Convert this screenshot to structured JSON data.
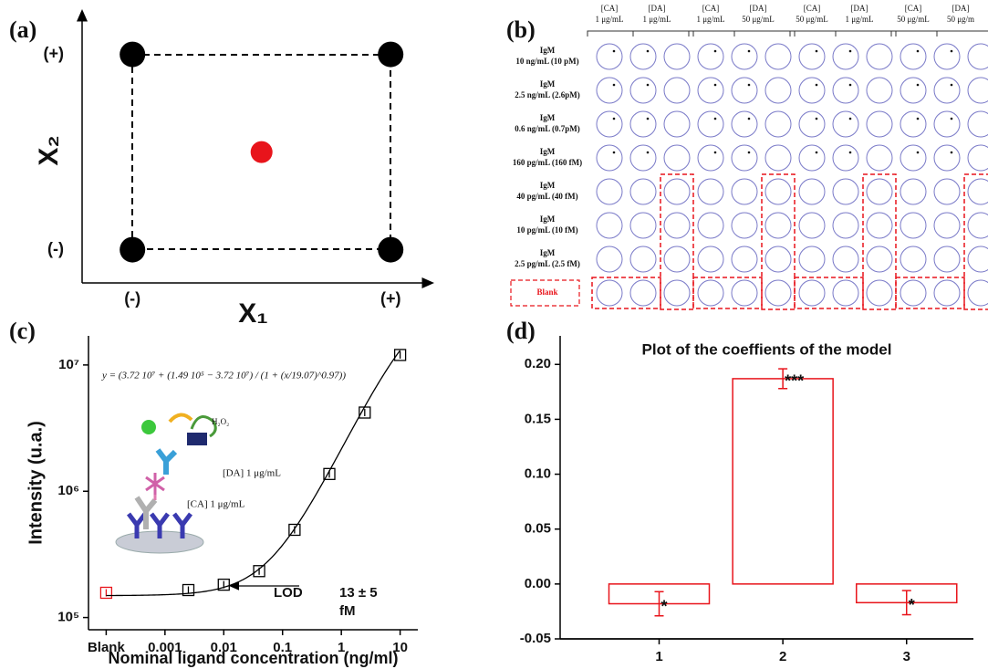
{
  "chart_data": [
    {
      "type": "scatter",
      "label": "(a)",
      "xlabel": "X₁",
      "ylabel": "X₂",
      "marker": "circle",
      "xlim": [
        -1.39,
        1.26
      ],
      "ylim": [
        -1.34,
        1.37
      ],
      "xticks": [
        {
          "value": -1,
          "label": "(-)"
        },
        {
          "value": 1,
          "label": "(+)"
        }
      ],
      "yticks": [
        {
          "value": -1,
          "label": "(-)"
        },
        {
          "value": 1,
          "label": "(+)"
        }
      ],
      "series": [
        {
          "color": "#000000",
          "x": [
            -1,
            1,
            -1,
            1
          ],
          "values": [
            1,
            1,
            -1,
            -1
          ]
        },
        {
          "color": "#e8141b",
          "x": [
            0
          ],
          "values": [
            0
          ]
        }
      ]
    },
    {
      "type": "scatter",
      "label": "(c)",
      "xlabel": "Nominal ligand concentration (ng/ml)",
      "ylabel": "Intensity (u.a.)",
      "marker": "square",
      "log_x": true,
      "log_y": true,
      "xlim": [
        5e-05,
        20
      ],
      "ylim": [
        80000,
        17000000
      ],
      "xticks": [
        {
          "value": 0.0001,
          "label": "Blank"
        },
        0.001,
        0.01,
        0.1,
        1,
        10
      ],
      "yticks": [
        {
          "value": 100000,
          "label": "10⁵"
        },
        {
          "value": 1000000,
          "label": "10⁶"
        },
        {
          "value": 10000000,
          "label": "10⁷"
        }
      ],
      "series": [
        {
          "color": "#e8141b",
          "x": [
            0.0001
          ],
          "values": [
            157000
          ]
        },
        {
          "color": "#000000",
          "x": [
            0.0025,
            0.01,
            0.04,
            0.16,
            0.625,
            2.5,
            10
          ],
          "values": [
            165000,
            182000,
            233000,
            495000,
            1370000,
            4200000,
            12000000
          ]
        }
      ],
      "fit": {
        "A1": 37200000,
        "A2": 149000,
        "x0": 19.07,
        "p": 0.97
      },
      "formula": "y = (3.72 10⁷ + (1.49 10⁵ − 3.72 10⁷) / (1 + (x/19.07)^0.97))",
      "lod_label": "LOD",
      "lod_value": "13 ± 5",
      "lod_unit": "fM",
      "illustration_labels": [
        "H₂O₂",
        "[DA] 1 μg/mL",
        "[CA] 1 μg/mL"
      ]
    },
    {
      "type": "bar",
      "label": "(d)",
      "title": "Plot of the coeffients of the model",
      "color": "#e8141b",
      "x": [
        1,
        2,
        3
      ],
      "values": [
        -0.018,
        0.187,
        -0.017
      ],
      "errors": [
        0.011,
        0.009,
        0.011
      ],
      "annotations": [
        "*",
        "***",
        "*"
      ],
      "xlim": [
        0.2,
        3.54
      ],
      "ylim": [
        -0.05,
        0.226
      ],
      "xticks": [
        1,
        2,
        3
      ],
      "yticks": [
        -0.05,
        {
          "value": 0,
          "label": "0.00"
        },
        0.05,
        {
          "value": 0.1,
          "label": "0.10"
        },
        0.15,
        {
          "value": 0.2,
          "label": "0.20"
        }
      ]
    }
  ],
  "panel_b": {
    "label": "(b)",
    "columns": [
      {
        "top": "[CA]",
        "bottom": "1 μg/mL"
      },
      {
        "top": "[DA]",
        "bottom": "1 μg/mL"
      },
      {
        "top": "[CA]",
        "bottom": "1 μg/mL"
      },
      {
        "top": "[DA]",
        "bottom": "50 μg/mL"
      },
      {
        "top": "[CA]",
        "bottom": "50 μg/mL"
      },
      {
        "top": "[DA]",
        "bottom": "1 μg/mL"
      },
      {
        "top": "[CA]",
        "bottom": "50 μg/mL"
      },
      {
        "top": "[DA]",
        "bottom": "50 μg/m"
      }
    ],
    "rows": [
      [
        "IgM",
        "10 ng/mL (10 pM)"
      ],
      [
        "IgM",
        "2.5 ng/mL (2.6pM)"
      ],
      [
        "IgM",
        "0.6 ng/mL (0.7pM)"
      ],
      [
        "IgM",
        "160 pg/mL (160 fM)"
      ],
      [
        "IgM",
        "40 pg/mL (40 fM)"
      ],
      [
        "IgM",
        "10 pg/mL (10 fM)"
      ],
      [
        "IgM",
        "2.5 pg/mL (2.5 fM)"
      ],
      [
        "Blank"
      ]
    ]
  }
}
